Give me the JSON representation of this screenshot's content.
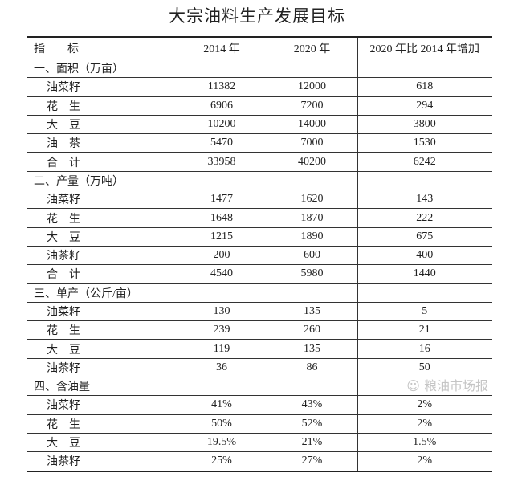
{
  "title": "大宗油料生产发展目标",
  "headers": [
    "指　　标",
    "2014 年",
    "2020 年",
    "2020 年比 2014 年增加"
  ],
  "sections": [
    {
      "label": "一、面积（万亩）",
      "rows": [
        [
          "油菜籽",
          "11382",
          "12000",
          "618"
        ],
        [
          "花　生",
          "6906",
          "7200",
          "294"
        ],
        [
          "大　豆",
          "10200",
          "14000",
          "3800"
        ],
        [
          "油　茶",
          "5470",
          "7000",
          "1530"
        ],
        [
          "合　计",
          "33958",
          "40200",
          "6242"
        ]
      ]
    },
    {
      "label": "二、产量（万吨）",
      "rows": [
        [
          "油菜籽",
          "1477",
          "1620",
          "143"
        ],
        [
          "花　生",
          "1648",
          "1870",
          "222"
        ],
        [
          "大　豆",
          "1215",
          "1890",
          "675"
        ],
        [
          "油茶籽",
          "200",
          "600",
          "400"
        ],
        [
          "合　计",
          "4540",
          "5980",
          "1440"
        ]
      ]
    },
    {
      "label": "三、单产（公斤/亩）",
      "rows": [
        [
          "油菜籽",
          "130",
          "135",
          "5"
        ],
        [
          "花　生",
          "239",
          "260",
          "21"
        ],
        [
          "大　豆",
          "119",
          "135",
          "16"
        ],
        [
          "油茶籽",
          "36",
          "86",
          "50"
        ]
      ]
    },
    {
      "label": "四、含油量",
      "rows": [
        [
          "油菜籽",
          "41%",
          "43%",
          "2%"
        ],
        [
          "花　生",
          "50%",
          "52%",
          "2%"
        ],
        [
          "大　豆",
          "19.5%",
          "21%",
          "1.5%"
        ],
        [
          "油茶籽",
          "25%",
          "27%",
          "2%"
        ]
      ]
    }
  ],
  "watermark": "粮油市场报"
}
